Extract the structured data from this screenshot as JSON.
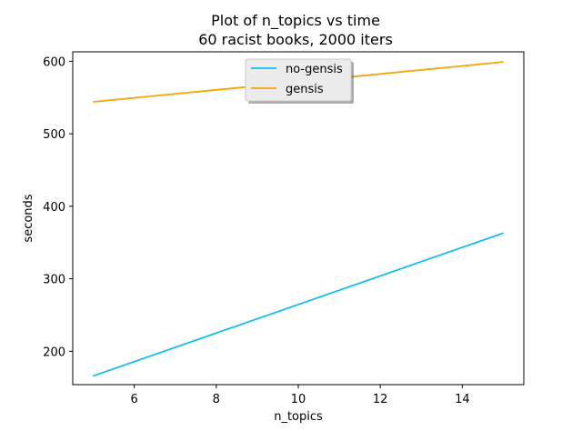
{
  "chart_data": {
    "type": "line",
    "title": "Plot of n_topics vs time",
    "subtitle": "60 racist books, 2000 iters",
    "xlabel": "n_topics",
    "ylabel": "seconds",
    "xlim": [
      4.5,
      15.5
    ],
    "ylim": [
      154,
      613
    ],
    "xticks": [
      6,
      8,
      10,
      12,
      14
    ],
    "yticks": [
      200,
      300,
      400,
      500,
      600
    ],
    "grid": false,
    "legend_position": "top-center",
    "series": [
      {
        "name": "no-gensis",
        "color": "#13bcf1",
        "x": [
          5,
          15
        ],
        "values": [
          166,
          363
        ]
      },
      {
        "name": "gensis",
        "color": "#f5a407",
        "x": [
          5,
          15
        ],
        "values": [
          544,
          599
        ]
      }
    ]
  }
}
